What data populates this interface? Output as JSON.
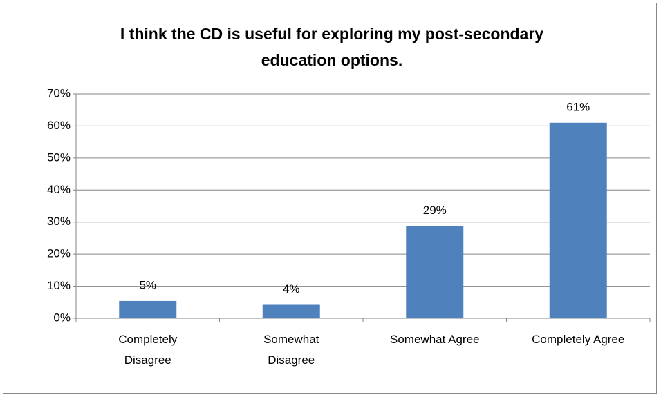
{
  "chart_data": {
    "type": "bar",
    "title": "I think the CD is useful for exploring my post-secondary education options.",
    "categories": [
      "Completely Disagree",
      "Somewhat Disagree",
      "Somewhat Agree",
      "Completely Agree"
    ],
    "values": [
      5.4,
      4.2,
      28.7,
      61
    ],
    "value_labels": [
      "5%",
      "4%",
      "29%",
      "61%"
    ],
    "color": "#4f81bd",
    "ylim": [
      0,
      70
    ],
    "yticks": [
      {
        "value": 0,
        "label": "0%"
      },
      {
        "value": 10,
        "label": "10%"
      },
      {
        "value": 20,
        "label": "20%"
      },
      {
        "value": 30,
        "label": "30%"
      },
      {
        "value": 40,
        "label": "40%"
      },
      {
        "value": 50,
        "label": "50%"
      },
      {
        "value": 60,
        "label": "60%"
      },
      {
        "value": 70,
        "label": "70%"
      }
    ],
    "grid": true
  }
}
